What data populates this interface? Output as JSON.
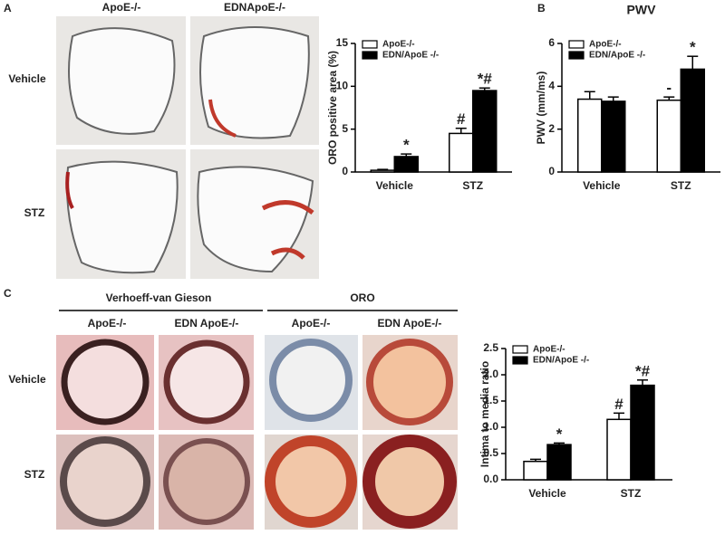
{
  "figure": {
    "panels": [
      "A",
      "B",
      "C"
    ],
    "a_columns": [
      "ApoE-/-",
      "EDNApoE-/-"
    ],
    "a_rows": [
      "Vehicle",
      "STZ"
    ],
    "c_groups": [
      "Verhoeff-van Gieson",
      "ORO"
    ],
    "c_columns": [
      "ApoE-/-",
      "EDN ApoE-/-",
      "ApoE-/-",
      "EDN ApoE-/-"
    ],
    "c_rows": [
      "Vehicle",
      "STZ"
    ]
  },
  "chart_data": [
    {
      "type": "bar",
      "ylabel": "ORO positive area (%)",
      "categories": [
        "Vehicle",
        "STZ"
      ],
      "series": [
        {
          "name": "ApoE-/-",
          "color": "#ffffff",
          "values": [
            0.2,
            4.5
          ],
          "errors": [
            0.1,
            0.6
          ],
          "annotations": [
            null,
            "#"
          ]
        },
        {
          "name": "EDN/ApoE -/-",
          "color": "#000000",
          "values": [
            1.8,
            9.5
          ],
          "errors": [
            0.3,
            0.3
          ],
          "annotations": [
            "*",
            "*#"
          ]
        }
      ],
      "ylim": [
        0,
        15
      ],
      "yticks": [
        0,
        5,
        10,
        15
      ],
      "legend": "upper left"
    },
    {
      "type": "bar",
      "title": "PWV",
      "ylabel": "PWV (mm/ms)",
      "categories": [
        "Vehicle",
        "STZ"
      ],
      "series": [
        {
          "name": "ApoE-/-",
          "color": "#ffffff",
          "values": [
            3.4,
            3.35
          ],
          "errors": [
            0.35,
            0.15
          ],
          "annotations": [
            null,
            "-"
          ]
        },
        {
          "name": "EDN/ApoE -/-",
          "color": "#000000",
          "values": [
            3.3,
            4.8
          ],
          "errors": [
            0.2,
            0.6
          ],
          "annotations": [
            null,
            "*"
          ]
        }
      ],
      "ylim": [
        0,
        6
      ],
      "yticks": [
        0,
        2,
        4,
        6
      ],
      "legend": "upper left"
    },
    {
      "type": "bar",
      "ylabel": "Intima to media ratio",
      "categories": [
        "Vehicle",
        "STZ"
      ],
      "series": [
        {
          "name": "ApoE-/-",
          "color": "#ffffff",
          "values": [
            0.35,
            1.15
          ],
          "errors": [
            0.04,
            0.12
          ],
          "annotations": [
            null,
            "#"
          ]
        },
        {
          "name": "EDN/ApoE -/-",
          "color": "#000000",
          "values": [
            0.67,
            1.8
          ],
          "errors": [
            0.03,
            0.1
          ],
          "annotations": [
            "*",
            "*#"
          ]
        }
      ],
      "ylim": [
        0,
        2.5
      ],
      "yticks": [
        {
          "value": 0,
          "label": "0.0"
        },
        0.5,
        {
          "value": 1,
          "label": "1.0"
        },
        1.5,
        {
          "value": 2,
          "label": "2.0"
        },
        2.5
      ],
      "legend": "upper left"
    }
  ]
}
